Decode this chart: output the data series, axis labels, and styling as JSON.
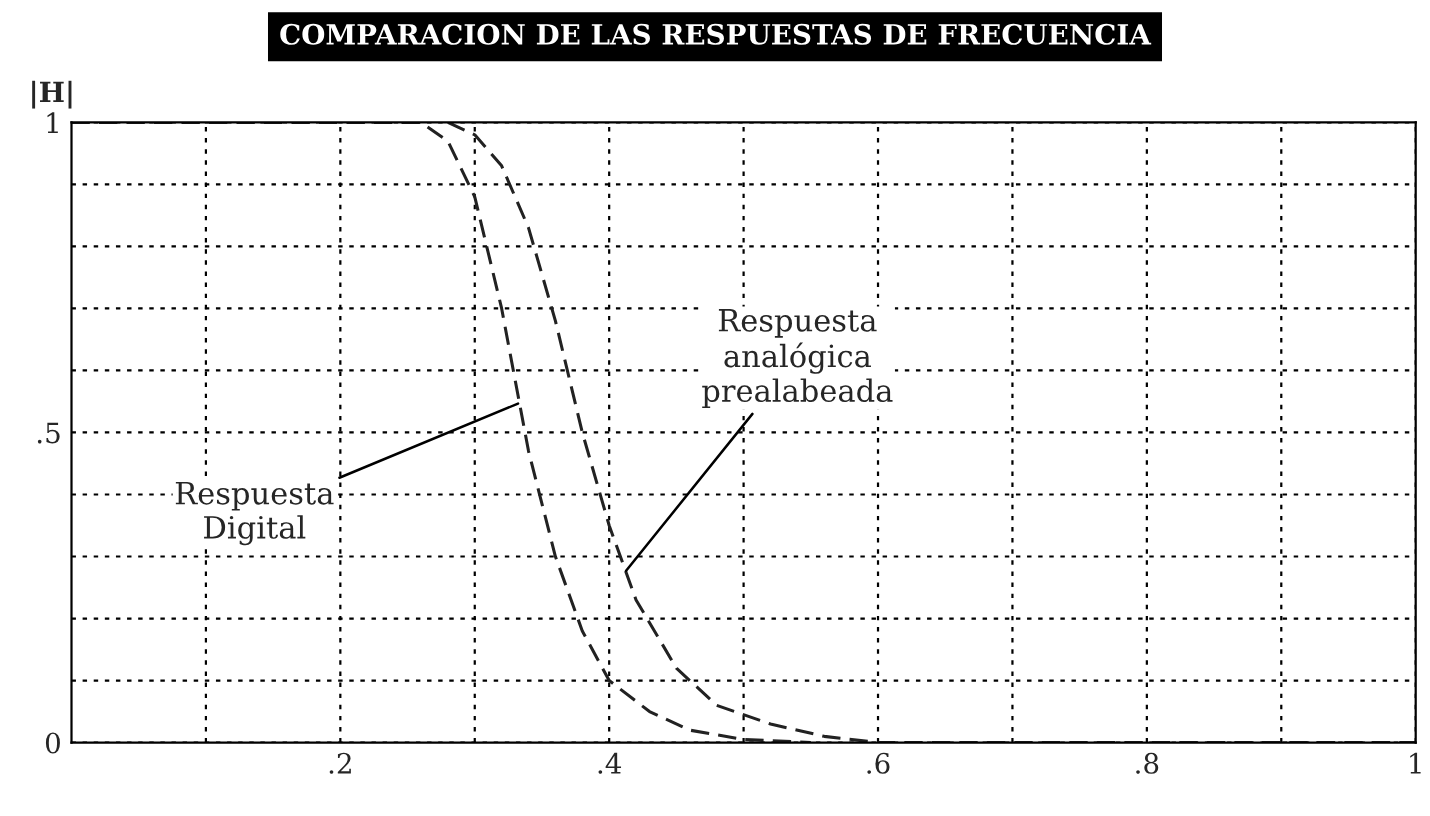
{
  "chart_data": {
    "type": "line",
    "title": "COMPARACION DE LAS RESPUESTAS DE FRECUENCIA",
    "ylabel": "|H|",
    "xlim": [
      0,
      1
    ],
    "ylim": [
      0,
      1
    ],
    "xticks": [
      {
        "value": 0.1,
        "label": null
      },
      {
        "value": 0.2,
        "label": ".2"
      },
      {
        "value": 0.3,
        "label": null
      },
      {
        "value": 0.4,
        "label": ".4"
      },
      {
        "value": 0.5,
        "label": null
      },
      {
        "value": 0.6,
        "label": ".6"
      },
      {
        "value": 0.7,
        "label": null
      },
      {
        "value": 0.8,
        "label": ".8"
      },
      {
        "value": 0.9,
        "label": null
      },
      1
    ],
    "yticks": [
      0,
      {
        "value": 0.1,
        "label": null
      },
      {
        "value": 0.2,
        "label": null
      },
      {
        "value": 0.3,
        "label": null
      },
      {
        "value": 0.4,
        "label": null
      },
      {
        "value": 0.5,
        "label": ".5"
      },
      {
        "value": 0.6,
        "label": null
      },
      {
        "value": 0.7,
        "label": null
      },
      {
        "value": 0.8,
        "label": null
      },
      {
        "value": 0.9,
        "label": null
      },
      1
    ],
    "grid": true,
    "line_style": "dashed",
    "marker": "none",
    "series": [
      {
        "color": "#222222",
        "x": [
          0,
          0.1,
          0.2,
          0.26,
          0.28,
          0.3,
          0.32,
          0.34,
          0.36,
          0.38,
          0.4,
          0.43,
          0.46,
          0.5,
          0.55
        ],
        "values": [
          1,
          1,
          1,
          1,
          0.97,
          0.88,
          0.7,
          0.47,
          0.3,
          0.18,
          0.1,
          0.05,
          0.02,
          0.005,
          0
        ]
      },
      {
        "color": "#222222",
        "x": [
          0.28,
          0.3,
          0.32,
          0.34,
          0.36,
          0.38,
          0.4,
          0.42,
          0.45,
          0.48,
          0.52,
          0.56,
          0.6,
          1.0
        ],
        "values": [
          1,
          0.98,
          0.93,
          0.83,
          0.68,
          0.5,
          0.35,
          0.23,
          0.12,
          0.06,
          0.03,
          0.01,
          0,
          0
        ]
      }
    ],
    "annotations": [
      {
        "text": "Respuesta\nDigital",
        "x": 0.336,
        "y": 0.55
      },
      {
        "text": "Respuesta\nanalógica\nprealabeada",
        "x": 0.41,
        "y": 0.27
      }
    ]
  }
}
